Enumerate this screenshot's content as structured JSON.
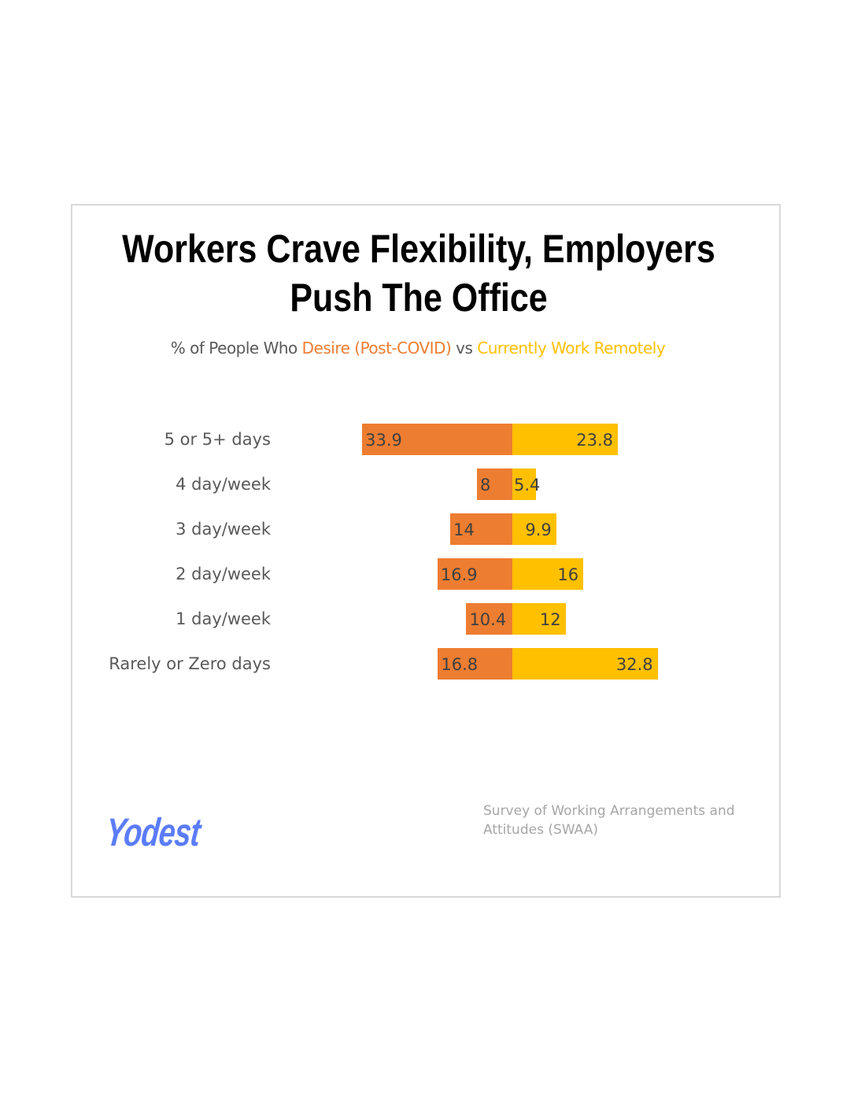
{
  "chart_data": {
    "type": "bar",
    "orientation": "horizontal-diverging",
    "title": "Workers Crave Flexibility, Employers Push The Office",
    "title_lines": [
      "Workers Crave Flexibility, Employers",
      "Push The Office"
    ],
    "subtitle": {
      "prefix": "% of People Who ",
      "series_a": "Desire (Post-COVID)",
      "mid": " vs ",
      "series_b": "Currently Work Remotely"
    },
    "categories": [
      "5 or 5+ days",
      "4 day/week",
      "3 day/week",
      "2 day/week",
      "1 day/week",
      "Rarely or Zero days"
    ],
    "series": [
      {
        "name": "Desire (Post-COVID)",
        "color": "#ed7d31",
        "side": "left",
        "values": [
          33.9,
          8,
          14,
          16.9,
          10.4,
          16.8
        ]
      },
      {
        "name": "Currently Work Remotely",
        "color": "#ffc000",
        "side": "right",
        "values": [
          23.8,
          5.4,
          9.9,
          16,
          12,
          32.8
        ]
      }
    ],
    "xlabel": "",
    "ylabel": "",
    "grid": false
  },
  "footer": {
    "logo": "Yodest",
    "source_lines": [
      "Survey of Working Arrangements and",
      "Attitudes (SWAA)"
    ]
  }
}
